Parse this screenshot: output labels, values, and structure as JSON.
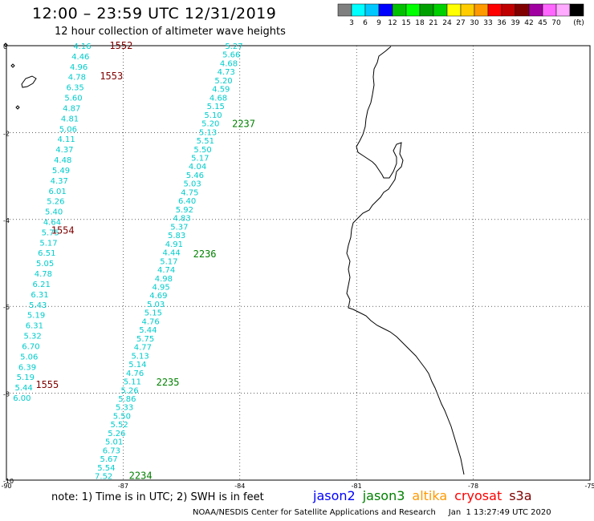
{
  "header": {
    "title": "12:00 – 23:59 UTC 12/31/2019",
    "subtitle": "12 hour collection of altimeter wave heights"
  },
  "legend": {
    "unit": "(ft)",
    "bins": [
      {
        "color": "#7f7f7f",
        "label": ""
      },
      {
        "color": "#00ffff",
        "label": "3"
      },
      {
        "color": "#00c8ff",
        "label": "6"
      },
      {
        "color": "#0000ff",
        "label": "9"
      },
      {
        "color": "#00c000",
        "label": "12"
      },
      {
        "color": "#00ff00",
        "label": "15"
      },
      {
        "color": "#00a000",
        "label": "18"
      },
      {
        "color": "#00d000",
        "label": "21"
      },
      {
        "color": "#ffff00",
        "label": "24"
      },
      {
        "color": "#ffcc00",
        "label": "27"
      },
      {
        "color": "#ff9900",
        "label": "30"
      },
      {
        "color": "#ff0000",
        "label": "33"
      },
      {
        "color": "#c00000",
        "label": "36"
      },
      {
        "color": "#800000",
        "label": "39"
      },
      {
        "color": "#a000a0",
        "label": "42"
      },
      {
        "color": "#ff66ff",
        "label": "45"
      },
      {
        "color": "#ffaaff",
        "label": "70"
      },
      {
        "color": "#000000",
        "label": ""
      }
    ]
  },
  "axes": {
    "y_ticks": [
      "0",
      "-2",
      "-4",
      "-6",
      "-8",
      "-10"
    ],
    "x_ticks": [
      "-90",
      "-87",
      "-84",
      "-81",
      "-78",
      "-75"
    ],
    "lon_range": [
      -90,
      -75
    ],
    "lat_range": [
      -10,
      0
    ]
  },
  "tracks": [
    {
      "name": "left",
      "values": [
        "4.16",
        "4.46",
        "4.96",
        "4.78",
        "6.35",
        "5.60",
        "4.87",
        "4.81",
        "5.06",
        "4.11",
        "4.37",
        "4.48",
        "5.49",
        "4.37",
        "6.01",
        "5.26",
        "5.40",
        "4.64",
        "5.75",
        "5.17",
        "6.51",
        "5.05",
        "4.78",
        "6.21",
        "6.31",
        "5.43",
        "5.19",
        "6.31",
        "5.32",
        "6.70",
        "5.06",
        "6.39",
        "5.19",
        "5.44",
        "6.00"
      ],
      "start": [
        -88.05,
        0.0
      ],
      "end": [
        -89.6,
        -8.1
      ]
    },
    {
      "name": "right",
      "values": [
        "5.27",
        "5.66",
        "4.68",
        "4.73",
        "5.20",
        "4.59",
        "4.68",
        "5.15",
        "5.10",
        "5.20",
        "5.13",
        "5.51",
        "5.50",
        "5.17",
        "4.04",
        "5.46",
        "5.03",
        "4.75",
        "6.40",
        "5.92",
        "4.83",
        "5.37",
        "5.83",
        "4.91",
        "4.44",
        "5.17",
        "4.74",
        "4.98",
        "4.95",
        "4.69",
        "5.03",
        "5.15",
        "4.76",
        "5.44",
        "5.75",
        "4.77",
        "5.13",
        "5.14",
        "4.76",
        "5.11",
        "5.26",
        "5.86",
        "5.33",
        "5.50",
        "5.52",
        "5.26",
        "5.01",
        "6.73",
        "5.67",
        "5.54",
        "7.52"
      ],
      "start": [
        -84.15,
        0.0
      ],
      "end": [
        -87.5,
        -9.9
      ]
    }
  ],
  "pass_labels": [
    {
      "text": "1552",
      "lon": -87.35,
      "lat": 0.0,
      "color": "#800000"
    },
    {
      "text": "1553",
      "lon": -87.6,
      "lat": -0.7,
      "color": "#800000"
    },
    {
      "text": "2237",
      "lon": -84.2,
      "lat": -1.8,
      "color": "#008000"
    },
    {
      "text": "1554",
      "lon": -88.85,
      "lat": -4.25,
      "color": "#800000"
    },
    {
      "text": "2236",
      "lon": -85.2,
      "lat": -4.8,
      "color": "#008000"
    },
    {
      "text": "1555",
      "lon": -89.25,
      "lat": -7.8,
      "color": "#800000"
    },
    {
      "text": "2235",
      "lon": -86.15,
      "lat": -7.75,
      "color": "#008000"
    },
    {
      "text": "2234",
      "lon": -86.85,
      "lat": -9.9,
      "color": "#008000"
    }
  ],
  "note": "note:  1) Time is in UTC; 2) SWH is in feet",
  "satellites": [
    {
      "name": "jason2",
      "color": "#0000ff"
    },
    {
      "name": "jason3",
      "color": "#008000"
    },
    {
      "name": "altika",
      "color": "#ff9900"
    },
    {
      "name": "cryosat",
      "color": "#ff0000"
    },
    {
      "name": "s3a",
      "color": "#800000"
    }
  ],
  "credit": "NOAA/NESDIS Center for Satellite Applications and Research     Jan  1 13:27:49 UTC 2020"
}
